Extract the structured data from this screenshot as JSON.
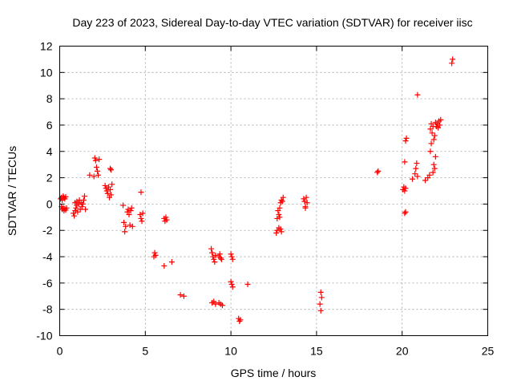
{
  "chart_data": {
    "type": "scatter",
    "title": "Day 223 of 2023, Sidereal Day-to-day VTEC variation (SDTVAR) for receiver iisc",
    "xlabel": "GPS time / hours",
    "ylabel": "SDTVAR / TECUs",
    "xlim": [
      0,
      25
    ],
    "ylim": [
      -10,
      12
    ],
    "xticks": [
      0,
      5,
      10,
      15,
      20,
      25
    ],
    "yticks": [
      -10,
      -8,
      -6,
      -4,
      -2,
      0,
      2,
      4,
      6,
      8,
      10,
      12
    ],
    "xtick_labels": [
      "0",
      "5",
      "10",
      "15",
      "20",
      "25"
    ],
    "ytick_labels": [
      "-10",
      "-8",
      "-6",
      "-4",
      "-2",
      "0",
      "2",
      "4",
      "6",
      "8",
      "10",
      "12"
    ],
    "grid": true,
    "marker": "plus",
    "color": "#ff0000",
    "series": [
      {
        "name": "SDTVAR",
        "points": [
          [
            0.05,
            0.4
          ],
          [
            0.1,
            0.5
          ],
          [
            0.15,
            0.3
          ],
          [
            0.2,
            0.6
          ],
          [
            0.25,
            0.5
          ],
          [
            0.3,
            0.4
          ],
          [
            0.35,
            0.55
          ],
          [
            0.1,
            -0.2
          ],
          [
            0.15,
            -0.4
          ],
          [
            0.2,
            -0.3
          ],
          [
            0.25,
            -0.5
          ],
          [
            0.3,
            -0.35
          ],
          [
            0.35,
            -0.45
          ],
          [
            0.4,
            -0.3
          ],
          [
            0.8,
            -0.7
          ],
          [
            0.85,
            -0.9
          ],
          [
            0.9,
            -0.5
          ],
          [
            0.95,
            -0.3
          ],
          [
            1.0,
            -0.1
          ],
          [
            0.9,
            0.1
          ],
          [
            1.0,
            0.2
          ],
          [
            1.05,
            -0.6
          ],
          [
            1.1,
            0.0
          ],
          [
            1.15,
            0.3
          ],
          [
            1.2,
            -0.4
          ],
          [
            1.25,
            0.1
          ],
          [
            1.3,
            -0.2
          ],
          [
            1.35,
            0.0
          ],
          [
            1.4,
            0.3
          ],
          [
            1.45,
            0.6
          ],
          [
            1.5,
            -0.4
          ],
          [
            1.75,
            2.2
          ],
          [
            2.0,
            2.1
          ],
          [
            2.05,
            3.5
          ],
          [
            2.1,
            3.3
          ],
          [
            2.15,
            2.8
          ],
          [
            2.2,
            2.5
          ],
          [
            2.25,
            2.2
          ],
          [
            2.3,
            3.4
          ],
          [
            2.65,
            1.4
          ],
          [
            2.7,
            1.2
          ],
          [
            2.75,
            1.0
          ],
          [
            2.8,
            0.8
          ],
          [
            2.85,
            1.3
          ],
          [
            2.9,
            0.5
          ],
          [
            2.95,
            1.1
          ],
          [
            3.0,
            0.7
          ],
          [
            3.05,
            1.5
          ],
          [
            2.95,
            2.7
          ],
          [
            3.0,
            2.6
          ],
          [
            3.7,
            -0.1
          ],
          [
            3.75,
            -1.4
          ],
          [
            3.8,
            -2.1
          ],
          [
            3.85,
            -1.7
          ],
          [
            3.95,
            -0.6
          ],
          [
            4.0,
            -0.4
          ],
          [
            4.05,
            -0.8
          ],
          [
            4.1,
            -1.6
          ],
          [
            4.15,
            -0.5
          ],
          [
            4.2,
            -0.3
          ],
          [
            4.25,
            -1.7
          ],
          [
            4.7,
            -0.8
          ],
          [
            4.75,
            -1.1
          ],
          [
            4.8,
            -1.3
          ],
          [
            4.85,
            -0.7
          ],
          [
            4.75,
            0.9
          ],
          [
            5.5,
            -4.0
          ],
          [
            5.55,
            -3.7
          ],
          [
            5.6,
            -3.9
          ],
          [
            6.1,
            -1.1
          ],
          [
            6.15,
            -1.3
          ],
          [
            6.2,
            -1.0
          ],
          [
            6.25,
            -1.2
          ],
          [
            6.1,
            -4.7
          ],
          [
            6.55,
            -4.4
          ],
          [
            7.05,
            -6.9
          ],
          [
            7.25,
            -7.0
          ],
          [
            8.85,
            -3.4
          ],
          [
            8.9,
            -3.7
          ],
          [
            8.95,
            -4.0
          ],
          [
            9.0,
            -4.2
          ],
          [
            9.05,
            -4.4
          ],
          [
            9.1,
            -3.9
          ],
          [
            9.3,
            -4.0
          ],
          [
            9.35,
            -3.8
          ],
          [
            9.4,
            -4.1
          ],
          [
            9.45,
            -4.2
          ],
          [
            8.9,
            -7.5
          ],
          [
            9.0,
            -7.4
          ],
          [
            9.1,
            -7.6
          ],
          [
            9.3,
            -7.5
          ],
          [
            9.4,
            -7.6
          ],
          [
            9.5,
            -7.7
          ],
          [
            10.0,
            -3.8
          ],
          [
            10.05,
            -4.0
          ],
          [
            10.1,
            -4.2
          ],
          [
            10.0,
            -5.9
          ],
          [
            10.05,
            -6.1
          ],
          [
            10.1,
            -6.3
          ],
          [
            10.45,
            -8.7
          ],
          [
            10.5,
            -8.9
          ],
          [
            10.55,
            -8.8
          ],
          [
            10.98,
            -6.1
          ],
          [
            12.65,
            -2.2
          ],
          [
            12.7,
            -1.1
          ],
          [
            12.75,
            -0.5
          ],
          [
            12.8,
            -0.8
          ],
          [
            12.85,
            -1.0
          ],
          [
            12.7,
            -2.0
          ],
          [
            12.8,
            -1.8
          ],
          [
            12.9,
            -1.9
          ],
          [
            12.95,
            -2.1
          ],
          [
            12.9,
            0.1
          ],
          [
            12.95,
            0.3
          ],
          [
            13.0,
            0.2
          ],
          [
            13.05,
            0.5
          ],
          [
            12.85,
            -0.3
          ],
          [
            14.25,
            0.4
          ],
          [
            14.3,
            0.2
          ],
          [
            14.35,
            -0.2
          ],
          [
            14.4,
            0.5
          ],
          [
            14.45,
            0.1
          ],
          [
            14.35,
            -0.3
          ],
          [
            15.25,
            -6.7
          ],
          [
            15.3,
            -7.1
          ],
          [
            15.2,
            -7.6
          ],
          [
            15.25,
            -8.1
          ],
          [
            18.55,
            2.4
          ],
          [
            18.6,
            2.5
          ],
          [
            20.05,
            1.1
          ],
          [
            20.1,
            1.3
          ],
          [
            20.15,
            1.0
          ],
          [
            20.2,
            1.2
          ],
          [
            20.15,
            3.2
          ],
          [
            20.2,
            4.8
          ],
          [
            20.25,
            5.0
          ],
          [
            20.15,
            -0.7
          ],
          [
            20.2,
            -0.6
          ],
          [
            20.6,
            1.9
          ],
          [
            20.75,
            2.3
          ],
          [
            20.8,
            2.7
          ],
          [
            20.85,
            3.1
          ],
          [
            20.9,
            2.1
          ],
          [
            20.9,
            8.3
          ],
          [
            21.35,
            1.8
          ],
          [
            21.5,
            2.0
          ],
          [
            21.6,
            2.2
          ],
          [
            21.65,
            4.0
          ],
          [
            21.7,
            4.6
          ],
          [
            21.65,
            5.7
          ],
          [
            21.7,
            6.1
          ],
          [
            21.75,
            5.4
          ],
          [
            21.8,
            5.9
          ],
          [
            21.8,
            2.4
          ],
          [
            21.85,
            3.0
          ],
          [
            21.9,
            2.7
          ],
          [
            21.95,
            3.6
          ],
          [
            21.85,
            4.9
          ],
          [
            21.9,
            5.2
          ],
          [
            21.95,
            6.2
          ],
          [
            22.0,
            5.9
          ],
          [
            22.05,
            6.1
          ],
          [
            22.1,
            5.8
          ],
          [
            22.15,
            6.3
          ],
          [
            22.2,
            6.0
          ],
          [
            22.25,
            6.4
          ],
          [
            22.9,
            10.7
          ],
          [
            22.95,
            11.0
          ]
        ]
      }
    ]
  }
}
